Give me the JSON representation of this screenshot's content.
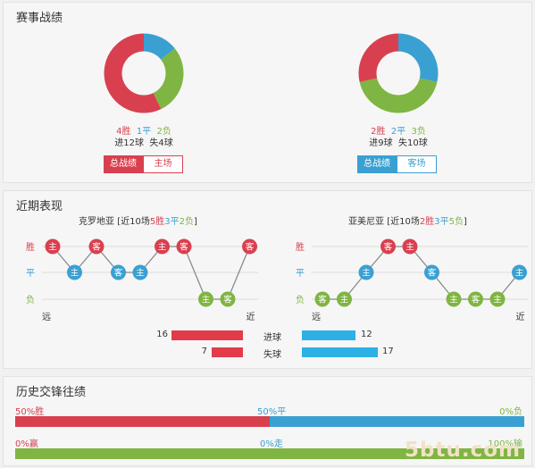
{
  "record": {
    "title": "赛事战绩",
    "home": {
      "wins_label": "4胜",
      "draws_label": "1平",
      "losses_label": "2负",
      "goals_label": "进12球",
      "conceded_label": "失4球",
      "tab_total": "总战绩",
      "tab_venue": "主场",
      "wins": 4,
      "draws": 1,
      "losses": 2
    },
    "away": {
      "wins_label": "2胜",
      "draws_label": "2平",
      "losses_label": "3负",
      "goals_label": "进9球",
      "conceded_label": "失10球",
      "tab_total": "总战绩",
      "tab_venue": "客场",
      "wins": 2,
      "draws": 2,
      "losses": 3
    }
  },
  "recent": {
    "title": "近期表现",
    "row_labels": [
      "胜",
      "平",
      "负"
    ],
    "far_label": "远",
    "near_label": "近",
    "home": {
      "team": "克罗地亚",
      "prefix": "[近10场",
      "wins": "5胜",
      "draws": "3平",
      "losses": "2负",
      "suffix": "]",
      "matches": [
        {
          "venue": "主",
          "result": "胜"
        },
        {
          "venue": "主",
          "result": "平"
        },
        {
          "venue": "客",
          "result": "胜"
        },
        {
          "venue": "客",
          "result": "平"
        },
        {
          "venue": "主",
          "result": "平"
        },
        {
          "venue": "主",
          "result": "胜"
        },
        {
          "venue": "客",
          "result": "胜"
        },
        {
          "venue": "主",
          "result": "负"
        },
        {
          "venue": "客",
          "result": "负"
        },
        {
          "venue": "客",
          "result": "胜"
        }
      ]
    },
    "away": {
      "team": "亚美尼亚",
      "prefix": "[近10场",
      "wins": "2胜",
      "draws": "3平",
      "losses": "5负",
      "suffix": "]",
      "matches": [
        {
          "venue": "客",
          "result": "负"
        },
        {
          "venue": "主",
          "result": "负"
        },
        {
          "venue": "主",
          "result": "平"
        },
        {
          "venue": "客",
          "result": "胜"
        },
        {
          "venue": "主",
          "result": "胜"
        },
        {
          "venue": "客",
          "result": "平"
        },
        {
          "venue": "主",
          "result": "负"
        },
        {
          "venue": "客",
          "result": "负"
        },
        {
          "venue": "主",
          "result": "负"
        },
        {
          "venue": "主",
          "result": "平"
        }
      ]
    },
    "goals_label": "进球",
    "conceded_label": "失球",
    "home_goals": "16",
    "home_conceded": "7",
    "away_goals": "12",
    "away_conceded": "17",
    "home_goals_value": 16,
    "home_conceded_value": 7,
    "away_goals_value": 12,
    "away_conceded_value": 17
  },
  "h2h": {
    "title": "历史交锋往绩",
    "row1": {
      "left": "50%胜",
      "mid": "50%平",
      "right": "0%负",
      "red_pct": 50,
      "blue_pct": 50
    },
    "row2": {
      "left": "0%赢",
      "mid": "0%走",
      "right": "100%输",
      "green_pct": 100
    }
  },
  "colors": {
    "win": "#d9404f",
    "draw": "#3aa0d2",
    "loss": "#7fb542"
  },
  "watermark": "5btu.com"
}
